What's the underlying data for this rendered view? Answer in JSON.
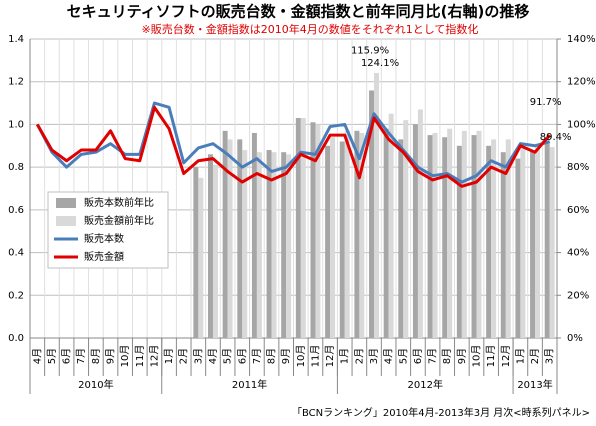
{
  "chart_data": {
    "type": "bar-line",
    "title": "セキュリティソフトの販売台数・金額指数と前年同月比(右軸)の推移",
    "subtitle": "※販売台数・金額指数は2010年4月の数値をそれぞれ1として指数化",
    "source": "「BCNランキング」2010年4月-2013年3月 月次<時系列パネル>",
    "categories": [
      "4月",
      "5月",
      "6月",
      "7月",
      "8月",
      "9月",
      "10月",
      "11月",
      "12月",
      "1月",
      "2月",
      "3月",
      "4月",
      "5月",
      "6月",
      "7月",
      "8月",
      "9月",
      "10月",
      "11月",
      "12月",
      "1月",
      "2月",
      "3月",
      "4月",
      "5月",
      "6月",
      "7月",
      "8月",
      "9月",
      "10月",
      "11月",
      "12月",
      "1月",
      "2月",
      "3月"
    ],
    "year_groups": [
      {
        "label": "2010年",
        "span": 9
      },
      {
        "label": "2011年",
        "span": 12
      },
      {
        "label": "2012年",
        "span": 12
      },
      {
        "label": "2013年",
        "span": 3
      }
    ],
    "ylim": [
      0,
      1.4
    ],
    "yticks": [
      {
        "value": 0,
        "label": "0.0"
      },
      0.2,
      0.4,
      0.6,
      0.8,
      {
        "value": 1,
        "label": "1.0"
      },
      1.2,
      1.4
    ],
    "y2lim": [
      0,
      140
    ],
    "y2ticks": [
      {
        "value": 0,
        "label": "0%"
      },
      {
        "value": 20,
        "label": "20%"
      },
      {
        "value": 40,
        "label": "40%"
      },
      {
        "value": 60,
        "label": "60%"
      },
      {
        "value": 80,
        "label": "80%"
      },
      {
        "value": 100,
        "label": "100%"
      },
      {
        "value": 120,
        "label": "120%"
      },
      {
        "value": 140,
        "label": "140%"
      }
    ],
    "grid": true,
    "legend": "center-left",
    "series": [
      {
        "name": "販売本数前年比",
        "type": "bar",
        "axis": "y2",
        "color": "#a6a6a6",
        "values": [
          null,
          null,
          null,
          null,
          null,
          null,
          null,
          null,
          null,
          null,
          null,
          80,
          86,
          97,
          93,
          96,
          88,
          87,
          103,
          101,
          90,
          92,
          97,
          115.9,
          98,
          93,
          100,
          95,
          94,
          90,
          95,
          90,
          87,
          84,
          88,
          91.7
        ],
        "value_labels": [
          null,
          null,
          null,
          null,
          null,
          null,
          null,
          null,
          null,
          null,
          null,
          null,
          null,
          null,
          null,
          null,
          null,
          null,
          null,
          null,
          null,
          null,
          null,
          "115.9%",
          null,
          null,
          null,
          null,
          null,
          null,
          null,
          null,
          null,
          null,
          null,
          "91.7%"
        ]
      },
      {
        "name": "販売金額前年比",
        "type": "bar",
        "axis": "y2",
        "color": "#d9d9d9",
        "values": [
          null,
          null,
          null,
          null,
          null,
          null,
          null,
          null,
          null,
          null,
          null,
          75,
          81,
          93,
          88,
          87,
          87,
          86,
          103,
          100,
          94,
          97,
          96,
          124.1,
          105,
          102,
          107,
          96,
          98,
          97,
          97,
          93,
          93,
          90,
          91,
          89.4
        ],
        "value_labels": [
          null,
          null,
          null,
          null,
          null,
          null,
          null,
          null,
          null,
          null,
          null,
          null,
          null,
          null,
          null,
          null,
          null,
          null,
          null,
          null,
          null,
          null,
          null,
          "124.1%",
          null,
          null,
          null,
          null,
          null,
          null,
          null,
          null,
          null,
          null,
          null,
          "89.4%"
        ]
      },
      {
        "name": "販売本数",
        "type": "line",
        "color": "#4a7ebb",
        "values": [
          1.0,
          0.87,
          0.8,
          0.86,
          0.87,
          0.91,
          0.86,
          0.86,
          1.1,
          1.08,
          0.82,
          0.89,
          0.91,
          0.86,
          0.8,
          0.84,
          0.78,
          0.8,
          0.87,
          0.86,
          0.99,
          1.0,
          0.84,
          1.05,
          0.96,
          0.88,
          0.8,
          0.76,
          0.77,
          0.73,
          0.76,
          0.83,
          0.8,
          0.91,
          0.9,
          0.92
        ]
      },
      {
        "name": "販売金額",
        "type": "line",
        "color": "#e00000",
        "values": [
          1.0,
          0.88,
          0.83,
          0.88,
          0.88,
          0.97,
          0.84,
          0.83,
          1.08,
          0.98,
          0.77,
          0.83,
          0.84,
          0.78,
          0.73,
          0.77,
          0.74,
          0.77,
          0.86,
          0.83,
          0.95,
          0.95,
          0.75,
          1.03,
          0.93,
          0.87,
          0.78,
          0.74,
          0.76,
          0.71,
          0.73,
          0.8,
          0.77,
          0.9,
          0.87,
          0.95
        ]
      }
    ]
  }
}
